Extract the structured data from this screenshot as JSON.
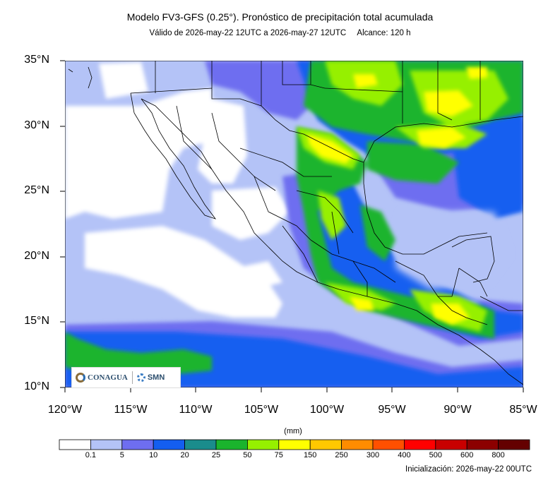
{
  "title": "Modelo FV3-GFS (0.25°). Pronóstico de precipitación total acumulada",
  "valid": "Válido de 2026-may-22 12UTC a 2026-may-27 12UTC",
  "range": "Alcance: 120 h",
  "lat_labels": [
    "35°N",
    "30°N",
    "25°N",
    "20°N",
    "15°N",
    "10°N"
  ],
  "lon_labels": [
    "120°W",
    "115°W",
    "110°W",
    "105°W",
    "100°W",
    "95°W",
    "90°W",
    "85°W"
  ],
  "map_extent": {
    "lon": [
      -120,
      -85
    ],
    "lat": [
      10,
      35
    ]
  },
  "legend": {
    "unit": "(mm)",
    "labels": [
      "0.1",
      "5",
      "10",
      "20",
      "25",
      "50",
      "75",
      "150",
      "250",
      "300",
      "400",
      "500",
      "600",
      "800"
    ],
    "colors": [
      "#ffffff",
      "#b4c3f7",
      "#6e6ef0",
      "#145ef0",
      "#1a8c8c",
      "#1ab42d",
      "#96f000",
      "#ffff00",
      "#ffc800",
      "#ff8c00",
      "#ff5000",
      "#ff0000",
      "#c80000",
      "#8c0000",
      "#640000"
    ]
  },
  "logos": {
    "conagua": "CONAGUA",
    "smn": "SMN"
  },
  "init": "Inicialización: 2026-may-22 00UTC"
}
